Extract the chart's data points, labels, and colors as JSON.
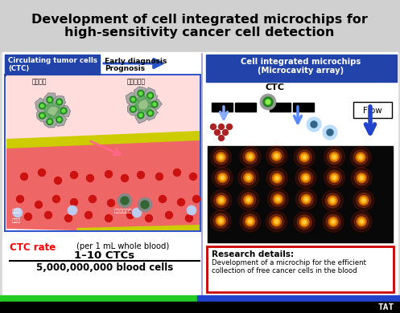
{
  "title_line1": "Development of cell integrated microchips for",
  "title_line2": "high-sensitivity cancer cell detection",
  "bg_color": "#d8d8d8",
  "white_area": "#ffffff",
  "left_panel_border": "#3355cc",
  "ctc_header_color": "#2244aa",
  "right_panel_header_color": "#2244aa",
  "ctc_rate_label_color": "#ff0000",
  "bottom_bar_green": "#22cc22",
  "bottom_bar_blue": "#2244cc",
  "tat_text": "TAT",
  "left_label1": "Circulating tumor cells",
  "left_label2": "(CTC)",
  "arrow_label1": "Early diagnosis",
  "arrow_label2": "Prognosis",
  "right_header1": "Cell integrated microchips",
  "right_header2": "(Microcavity array)",
  "ctc_label": "CTC",
  "flow_label": "Flow",
  "ctc_rate_text": "CTC rate",
  "per_blood_text": "(per 1 mL whole blood)",
  "ratio_top": "1–10 CTCs",
  "ratio_bottom": "5,000,000,000 blood cells",
  "research_title": "Research details:",
  "research_body1": "Development of a microchip for the efficient",
  "research_body2": "collection of free cancer cells in the blood",
  "research_box_color": "#cc0000",
  "divider_color": "#9999cc"
}
